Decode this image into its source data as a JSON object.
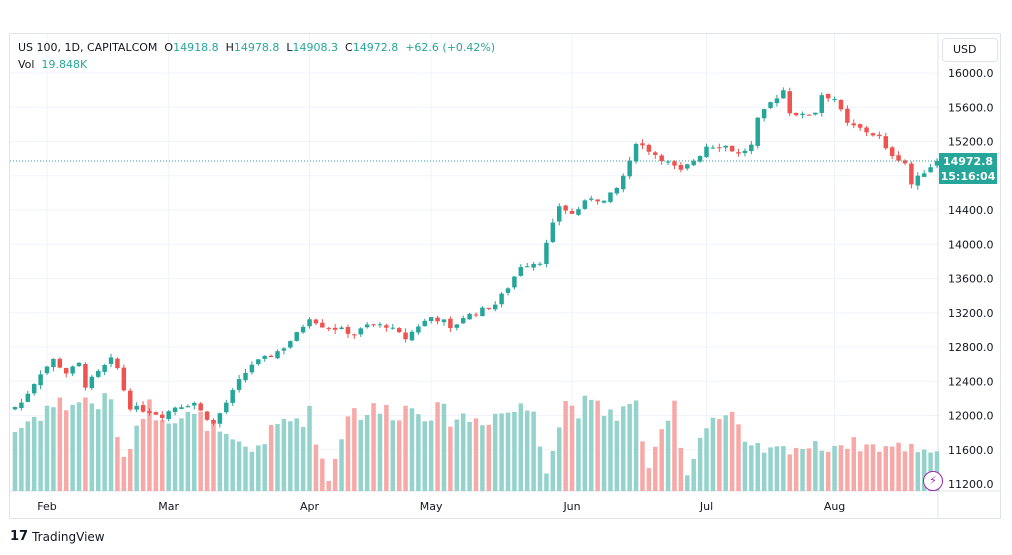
{
  "legend": {
    "symbol": "US 100, 1D, CAPITALCOM",
    "o_label": "O",
    "o": "14918.8",
    "h_label": "H",
    "h": "14978.8",
    "l_label": "L",
    "l": "14908.3",
    "c_label": "C",
    "c": "14972.8",
    "change": "+62.6 (+0.42%)",
    "vol_label": "Vol",
    "vol": "19.848K"
  },
  "currency": "USD",
  "last_price": "14972.8",
  "countdown": "15:16:04",
  "brand": "TradingView",
  "colors": {
    "up": "#26a69a",
    "down": "#ef5350",
    "vol_up": "#94d3cc",
    "vol_down": "#f7a9a7"
  },
  "chart_data": {
    "type": "candlestick",
    "ylim": [
      11000,
      16150
    ],
    "y_ticks": [
      16000,
      15600,
      15200,
      14800,
      14400,
      14000,
      13600,
      13200,
      12800,
      12400,
      12000,
      11600,
      11200
    ],
    "y_tick_labels": [
      "16000.0",
      "15600.0",
      "15200.0",
      "",
      "14400.0",
      "14000.0",
      "13600.0",
      "13200.0",
      "12800.0",
      "12400.0",
      "12000.0",
      "11600.0",
      "11200.0"
    ],
    "x_labels": [
      {
        "day": 5,
        "label": "Feb"
      },
      {
        "day": 24,
        "label": "Mar"
      },
      {
        "day": 46,
        "label": "Apr"
      },
      {
        "day": 65,
        "label": "May"
      },
      {
        "day": 87,
        "label": "Jun"
      },
      {
        "day": 108,
        "label": "Jul"
      },
      {
        "day": 128,
        "label": "Aug"
      }
    ],
    "days": 145,
    "close_keypoints": [
      [
        0,
        12100
      ],
      [
        1,
        12150
      ],
      [
        4,
        12500
      ],
      [
        6,
        12650
      ],
      [
        8,
        12500
      ],
      [
        10,
        12600
      ],
      [
        11,
        12350
      ],
      [
        13,
        12500
      ],
      [
        15,
        12650
      ],
      [
        16,
        12550
      ],
      [
        17,
        12300
      ],
      [
        18,
        12100
      ],
      [
        21,
        12050
      ],
      [
        23,
        12000
      ],
      [
        25,
        12100
      ],
      [
        28,
        12150
      ],
      [
        29,
        12050
      ],
      [
        31,
        11900
      ],
      [
        33,
        12150
      ],
      [
        35,
        12400
      ],
      [
        37,
        12600
      ],
      [
        40,
        12700
      ],
      [
        42,
        12800
      ],
      [
        44,
        12950
      ],
      [
        46,
        13150
      ],
      [
        48,
        13050
      ],
      [
        51,
        13000
      ],
      [
        53,
        12950
      ],
      [
        55,
        13050
      ],
      [
        58,
        13050
      ],
      [
        60,
        12950
      ],
      [
        61,
        12900
      ],
      [
        63,
        13050
      ],
      [
        65,
        13150
      ],
      [
        67,
        13100
      ],
      [
        68,
        13000
      ],
      [
        70,
        13150
      ],
      [
        72,
        13200
      ],
      [
        75,
        13300
      ],
      [
        77,
        13500
      ],
      [
        79,
        13750
      ],
      [
        82,
        13800
      ],
      [
        83,
        14000
      ],
      [
        85,
        14450
      ],
      [
        87,
        14350
      ],
      [
        90,
        14550
      ],
      [
        92,
        14500
      ],
      [
        94,
        14650
      ],
      [
        96,
        14950
      ],
      [
        97,
        15200
      ],
      [
        100,
        15050
      ],
      [
        102,
        14950
      ],
      [
        104,
        14850
      ],
      [
        107,
        15050
      ],
      [
        108,
        15150
      ],
      [
        111,
        15150
      ],
      [
        113,
        15050
      ],
      [
        115,
        15150
      ],
      [
        116,
        15450
      ],
      [
        118,
        15650
      ],
      [
        120,
        15800
      ],
      [
        121,
        15550
      ],
      [
        123,
        15500
      ],
      [
        125,
        15550
      ],
      [
        126,
        15750
      ],
      [
        128,
        15700
      ],
      [
        130,
        15400
      ],
      [
        132,
        15350
      ],
      [
        135,
        15250
      ],
      [
        136,
        15100
      ],
      [
        139,
        14950
      ],
      [
        140,
        14700
      ],
      [
        142,
        14850
      ],
      [
        144,
        14972.8
      ]
    ],
    "volume_keypoints_k": [
      [
        0,
        30
      ],
      [
        5,
        42
      ],
      [
        10,
        45
      ],
      [
        15,
        44
      ],
      [
        17,
        15
      ],
      [
        20,
        42
      ],
      [
        25,
        38
      ],
      [
        30,
        35
      ],
      [
        33,
        25
      ],
      [
        37,
        20
      ],
      [
        42,
        35
      ],
      [
        46,
        38
      ],
      [
        49,
        5
      ],
      [
        52,
        40
      ],
      [
        58,
        40
      ],
      [
        63,
        42
      ],
      [
        67,
        38
      ],
      [
        72,
        36
      ],
      [
        77,
        40
      ],
      [
        81,
        42
      ],
      [
        83,
        10
      ],
      [
        86,
        44
      ],
      [
        92,
        40
      ],
      [
        95,
        40
      ],
      [
        97,
        42
      ],
      [
        99,
        12
      ],
      [
        103,
        42
      ],
      [
        105,
        8
      ],
      [
        108,
        36
      ],
      [
        112,
        38
      ],
      [
        114,
        22
      ],
      [
        118,
        20
      ],
      [
        122,
        22
      ],
      [
        126,
        22
      ],
      [
        130,
        24
      ],
      [
        135,
        22
      ],
      [
        140,
        22
      ],
      [
        144,
        19.848
      ]
    ]
  }
}
